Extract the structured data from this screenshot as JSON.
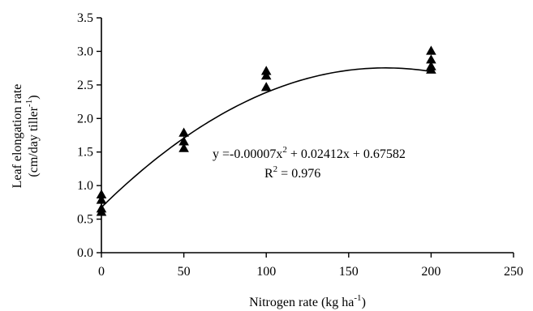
{
  "chart_data": {
    "type": "scatter",
    "xlabel": "Nitrogen rate  (kg ha",
    "xlabel_sup": "-1",
    "xlabel_end": ")",
    "ylabel_line1": "Leaf  elongation  rate",
    "ylabel_line2": "(cm/day tiller",
    "ylabel_sup": "-1",
    "ylabel_end": ")",
    "xlim": [
      0,
      250
    ],
    "ylim": [
      0.0,
      3.5
    ],
    "xticks": [
      0,
      50,
      100,
      150,
      200,
      250
    ],
    "xtick_labels": [
      "0",
      "50",
      "100",
      "150",
      "200",
      "250"
    ],
    "yticks": [
      0.0,
      0.5,
      1.0,
      1.5,
      2.0,
      2.5,
      3.0,
      3.5
    ],
    "ytick_labels": [
      "0.0",
      "0.5",
      "1.0",
      "1.5",
      "2.0",
      "2.5",
      "3.0",
      "3.5"
    ],
    "grid": false,
    "series": [
      {
        "marker": "triangle",
        "color": "#000000",
        "points": [
          {
            "x": 0,
            "y": 0.86
          },
          {
            "x": 0,
            "y": 0.78
          },
          {
            "x": 0,
            "y": 0.65
          },
          {
            "x": 0,
            "y": 0.6
          },
          {
            "x": 50,
            "y": 1.78
          },
          {
            "x": 50,
            "y": 1.65
          },
          {
            "x": 50,
            "y": 1.55
          },
          {
            "x": 100,
            "y": 2.7
          },
          {
            "x": 100,
            "y": 2.63
          },
          {
            "x": 100,
            "y": 2.46
          },
          {
            "x": 200,
            "y": 3.0
          },
          {
            "x": 200,
            "y": 2.87
          },
          {
            "x": 200,
            "y": 2.77
          },
          {
            "x": 200,
            "y": 2.72
          }
        ]
      }
    ],
    "fit": {
      "type": "quadratic",
      "a": -7e-05,
      "b": 0.02412,
      "c": 0.67582,
      "x_range": [
        0,
        200
      ],
      "equation_prefix": "y =-0.00007x",
      "equation_sup": "2",
      "equation_rest": " + 0.02412x + 0.67582",
      "r2_prefix": "R",
      "r2_sup": "2",
      "r2_rest": " = 0.976"
    }
  }
}
